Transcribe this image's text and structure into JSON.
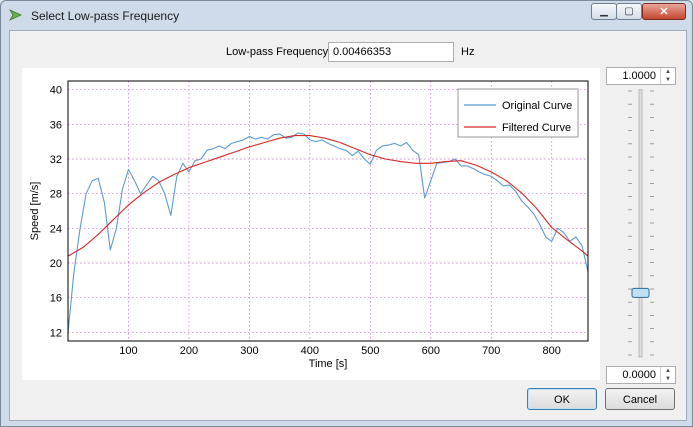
{
  "window": {
    "title": "Select Low-pass Frequency"
  },
  "form": {
    "freq_label": "Low-pass Frequency",
    "freq_value": "0.00466353",
    "freq_unit": "Hz"
  },
  "slider": {
    "max_value": "1.0000",
    "min_value": "0.0000",
    "position": 0.23
  },
  "buttons": {
    "ok": "OK",
    "cancel": "Cancel"
  },
  "chart_data": {
    "type": "line",
    "xlabel": "Time [s]",
    "ylabel": "Speed [m/s]",
    "xlim": [
      0,
      860
    ],
    "ylim": [
      11,
      41
    ],
    "x_ticks": [
      "100",
      "200",
      "300",
      "400",
      "500",
      "600",
      "700",
      "800"
    ],
    "y_ticks": [
      "12",
      "16",
      "20",
      "24",
      "28",
      "32",
      "36",
      "40"
    ],
    "grid": true,
    "legend_position": "top-right",
    "series": [
      {
        "name": "Original Curve",
        "color": "#5b9bd5",
        "x": [
          0,
          10,
          20,
          30,
          40,
          50,
          60,
          70,
          80,
          90,
          100,
          110,
          120,
          130,
          140,
          150,
          160,
          170,
          180,
          190,
          200,
          210,
          220,
          230,
          240,
          250,
          260,
          270,
          280,
          290,
          300,
          310,
          320,
          330,
          340,
          350,
          360,
          370,
          380,
          390,
          400,
          410,
          420,
          430,
          440,
          450,
          460,
          470,
          480,
          490,
          500,
          510,
          520,
          530,
          540,
          550,
          560,
          570,
          580,
          590,
          600,
          610,
          620,
          630,
          640,
          650,
          660,
          670,
          680,
          690,
          700,
          710,
          720,
          730,
          740,
          750,
          760,
          770,
          780,
          790,
          800,
          810,
          820,
          830,
          840,
          850,
          860
        ],
        "y": [
          12,
          19,
          24,
          28,
          29.5,
          29.8,
          27,
          21.5,
          24,
          28.5,
          30.8,
          29.5,
          28,
          29,
          30,
          29.5,
          28,
          25.5,
          30,
          31.5,
          30.5,
          31.8,
          32,
          33,
          33.2,
          33.5,
          33.2,
          33.8,
          34,
          34.2,
          34.6,
          34.3,
          34.5,
          34.3,
          34.8,
          34.9,
          34.4,
          34.5,
          35,
          34.9,
          34.2,
          34,
          34.2,
          33.8,
          33.5,
          33.2,
          33,
          32.4,
          32.9,
          32,
          31.4,
          33,
          33.5,
          33.6,
          33.8,
          33.5,
          33.9,
          33,
          32.5,
          27.5,
          29.5,
          31.5,
          31.6,
          31.7,
          32,
          31.2,
          31.2,
          30.9,
          30.5,
          30.2,
          30,
          29.5,
          28.9,
          29,
          28.3,
          27.2,
          26.5,
          25.7,
          24.5,
          23,
          22.5,
          24,
          23.5,
          22.5,
          23,
          22,
          19
        ]
      },
      {
        "name": "Filtered Curve",
        "color": "#d62728",
        "x": [
          0,
          25,
          50,
          75,
          100,
          125,
          150,
          175,
          200,
          225,
          250,
          275,
          300,
          325,
          350,
          375,
          400,
          425,
          450,
          475,
          500,
          525,
          550,
          575,
          600,
          625,
          650,
          675,
          700,
          725,
          750,
          775,
          800,
          825,
          850,
          860
        ],
        "y": [
          20.8,
          21.8,
          23.3,
          25.0,
          26.7,
          28.1,
          29.3,
          30.2,
          31.0,
          31.6,
          32.2,
          32.8,
          33.4,
          33.9,
          34.4,
          34.7,
          34.7,
          34.4,
          33.9,
          33.2,
          32.5,
          32.0,
          31.7,
          31.5,
          31.5,
          31.7,
          31.8,
          31.3,
          30.5,
          29.5,
          28.1,
          26.3,
          24.1,
          22.7,
          21.4,
          20.8
        ]
      }
    ]
  }
}
